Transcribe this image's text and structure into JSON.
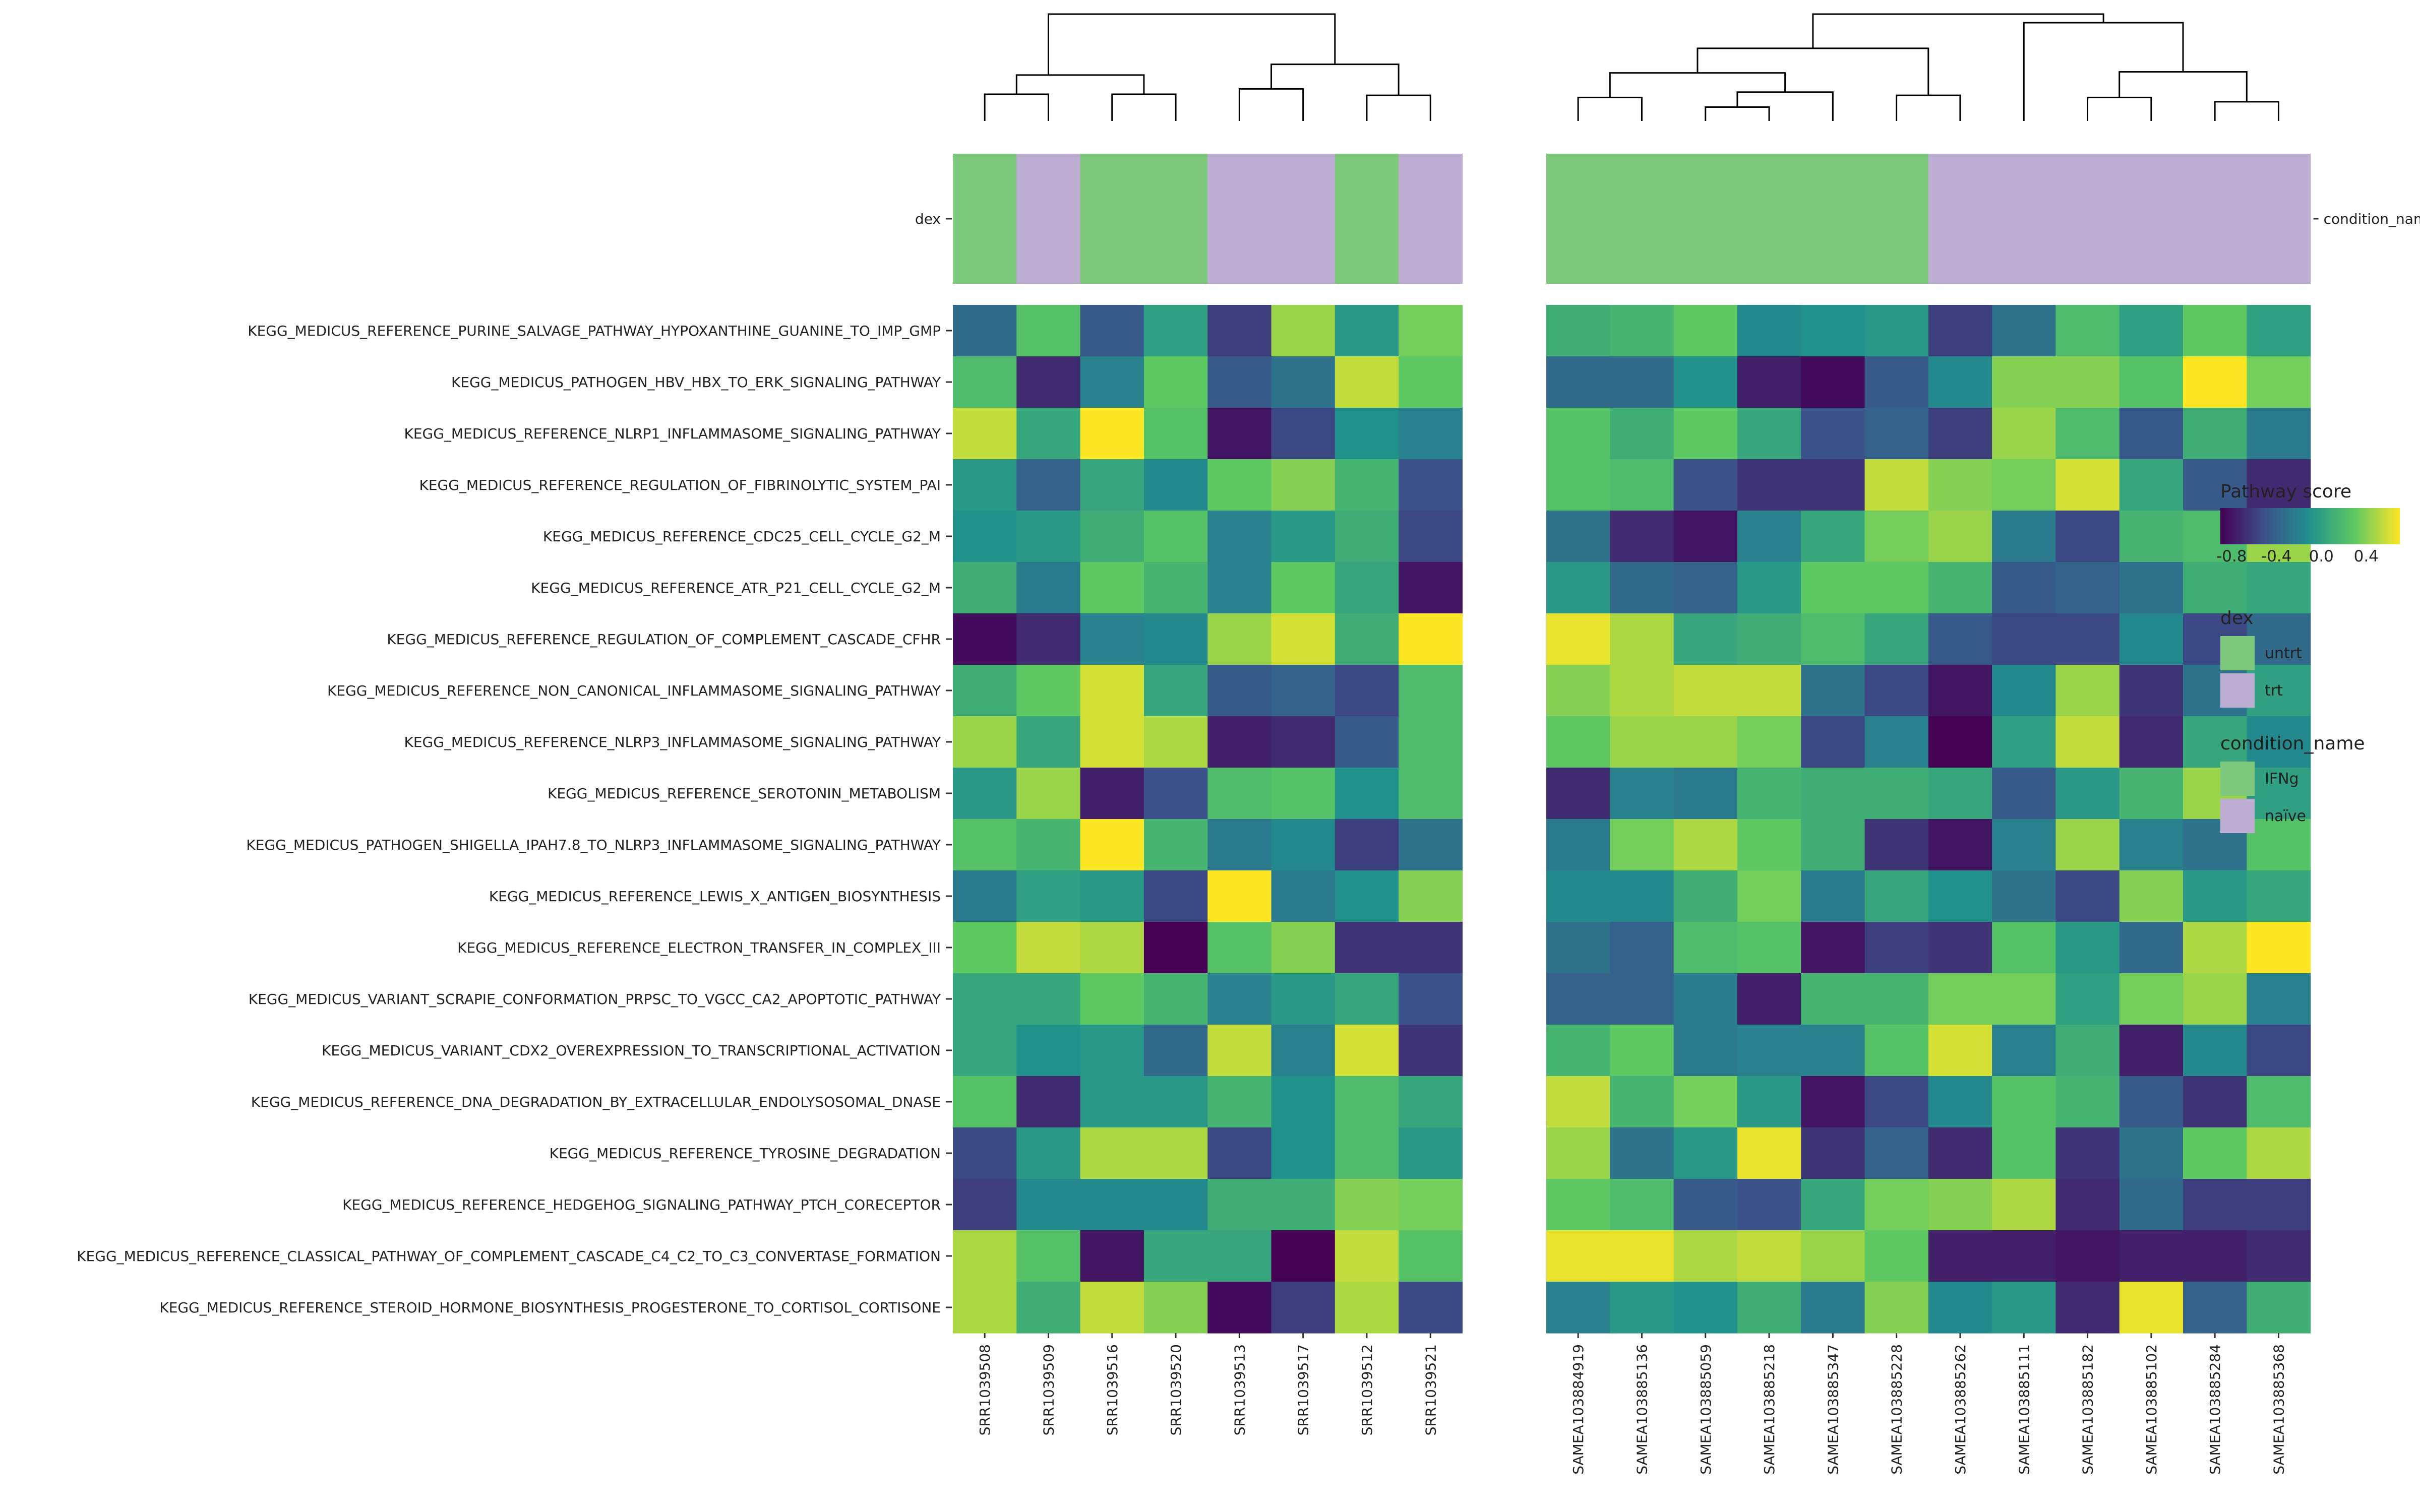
{
  "chart_data": {
    "type": "heatmap",
    "title": "",
    "annotation_labels": {
      "left": "dex",
      "right": "condition_name"
    },
    "colorscale": {
      "name": "viridis",
      "range": [
        -0.9,
        0.7
      ],
      "ticks": [
        -0.8,
        -0.4,
        0.0,
        0.4
      ],
      "tick_labels": [
        "-0.8",
        "-0.4",
        "0.0",
        "0.4"
      ],
      "title": "Pathway score"
    },
    "panels": [
      {
        "columns": [
          "SRR1039508",
          "SRR1039509",
          "SRR1039516",
          "SRR1039520",
          "SRR1039513",
          "SRR1039517",
          "SRR1039512",
          "SRR1039521"
        ],
        "annotation": [
          "untrt",
          "trt",
          "untrt",
          "untrt",
          "trt",
          "trt",
          "untrt",
          "trt"
        ],
        "annotation_legend": "dex",
        "values": [
          [
            -0.35,
            0.25,
            -0.45,
            0.0,
            -0.6,
            0.45,
            -0.05,
            0.35
          ],
          [
            0.2,
            -0.7,
            -0.2,
            0.3,
            -0.45,
            -0.3,
            0.55,
            0.3
          ],
          [
            0.55,
            0.05,
            0.7,
            0.25,
            -0.8,
            -0.55,
            -0.1,
            -0.2
          ],
          [
            -0.05,
            -0.4,
            0.05,
            -0.15,
            0.3,
            0.4,
            0.15,
            -0.5
          ],
          [
            -0.1,
            -0.05,
            0.1,
            0.25,
            -0.2,
            -0.05,
            0.1,
            -0.55
          ],
          [
            0.1,
            -0.25,
            0.3,
            0.15,
            -0.2,
            0.3,
            0.05,
            -0.8
          ],
          [
            -0.85,
            -0.7,
            -0.2,
            -0.15,
            0.45,
            0.6,
            0.1,
            0.7
          ],
          [
            0.1,
            0.3,
            0.6,
            0.05,
            -0.45,
            -0.4,
            -0.55,
            0.2
          ],
          [
            0.45,
            0.05,
            0.6,
            0.5,
            -0.75,
            -0.7,
            -0.45,
            0.2
          ],
          [
            -0.05,
            0.45,
            -0.75,
            -0.5,
            0.2,
            0.25,
            -0.1,
            0.2
          ],
          [
            0.25,
            0.15,
            0.7,
            0.15,
            -0.25,
            -0.15,
            -0.6,
            -0.3
          ],
          [
            -0.25,
            0.0,
            -0.05,
            -0.55,
            0.7,
            -0.25,
            -0.1,
            0.4
          ],
          [
            0.3,
            0.55,
            0.5,
            -0.9,
            0.25,
            0.4,
            -0.65,
            -0.65
          ],
          [
            0.05,
            0.05,
            0.3,
            0.15,
            -0.2,
            -0.05,
            0.05,
            -0.5
          ],
          [
            0.05,
            -0.1,
            -0.05,
            -0.35,
            0.55,
            -0.2,
            0.6,
            -0.65
          ],
          [
            0.25,
            -0.7,
            -0.05,
            -0.05,
            0.15,
            -0.1,
            0.2,
            0.05
          ],
          [
            -0.55,
            -0.05,
            0.5,
            0.5,
            -0.55,
            -0.1,
            0.2,
            -0.05
          ],
          [
            -0.6,
            -0.15,
            -0.15,
            -0.15,
            0.1,
            0.1,
            0.4,
            0.35
          ],
          [
            0.5,
            0.25,
            -0.8,
            0.05,
            0.05,
            -0.9,
            0.55,
            0.25
          ],
          [
            0.5,
            0.1,
            0.55,
            0.4,
            -0.85,
            -0.6,
            0.5,
            -0.55
          ]
        ]
      },
      {
        "columns": [
          "SAMEA103884919",
          "SAMEA103885136",
          "SAMEA103885059",
          "SAMEA103885218",
          "SAMEA103885347",
          "SAMEA103885228",
          "SAMEA103885262",
          "SAMEA103885111",
          "SAMEA103885182",
          "SAMEA103885102",
          "SAMEA103885284",
          "SAMEA103885368"
        ],
        "annotation": [
          "IFNg",
          "IFNg",
          "IFNg",
          "IFNg",
          "IFNg",
          "IFNg",
          "naive",
          "naive",
          "naive",
          "naive",
          "naive",
          "naive"
        ],
        "annotation_legend": "condition_name",
        "values": [
          [
            0.1,
            0.15,
            0.3,
            -0.15,
            -0.1,
            -0.05,
            -0.6,
            -0.3,
            0.2,
            0.0,
            0.3,
            0.0
          ],
          [
            -0.35,
            -0.35,
            -0.1,
            -0.75,
            -0.85,
            -0.45,
            -0.15,
            0.4,
            0.4,
            0.25,
            0.7,
            0.35
          ],
          [
            0.25,
            0.1,
            0.3,
            0.05,
            -0.5,
            -0.4,
            -0.6,
            0.45,
            0.2,
            -0.45,
            0.1,
            -0.25
          ],
          [
            0.25,
            0.2,
            -0.5,
            -0.65,
            -0.65,
            0.55,
            0.4,
            0.35,
            0.6,
            0.05,
            -0.45,
            -0.7
          ],
          [
            -0.3,
            -0.7,
            -0.8,
            -0.2,
            0.05,
            0.35,
            0.45,
            -0.25,
            -0.55,
            0.15,
            0.2,
            0.45
          ],
          [
            -0.05,
            -0.35,
            -0.4,
            -0.05,
            0.3,
            0.3,
            0.15,
            -0.45,
            -0.4,
            -0.3,
            0.1,
            0.05
          ],
          [
            0.65,
            0.5,
            0.05,
            0.1,
            0.2,
            0.05,
            -0.45,
            -0.55,
            -0.55,
            -0.15,
            -0.55,
            -0.35
          ],
          [
            0.4,
            0.5,
            0.55,
            0.55,
            -0.3,
            -0.55,
            -0.8,
            -0.15,
            0.45,
            -0.65,
            -0.3,
            0.0
          ],
          [
            0.3,
            0.45,
            0.45,
            0.35,
            -0.55,
            -0.2,
            -0.95,
            0.0,
            0.55,
            -0.7,
            0.05,
            -0.15
          ],
          [
            -0.7,
            -0.2,
            -0.25,
            0.15,
            0.1,
            0.1,
            0.05,
            -0.45,
            -0.05,
            0.15,
            0.45,
            0.0
          ],
          [
            -0.25,
            0.35,
            0.5,
            0.3,
            0.1,
            -0.65,
            -0.8,
            -0.2,
            0.45,
            -0.2,
            -0.3,
            0.25
          ],
          [
            -0.15,
            -0.15,
            0.1,
            0.35,
            -0.25,
            0.05,
            -0.1,
            -0.3,
            -0.55,
            0.4,
            -0.05,
            0.05
          ],
          [
            -0.3,
            -0.4,
            0.2,
            0.25,
            -0.8,
            -0.6,
            -0.65,
            0.25,
            -0.05,
            -0.35,
            0.5,
            0.7
          ],
          [
            -0.4,
            -0.4,
            -0.25,
            -0.75,
            0.15,
            0.15,
            0.35,
            0.35,
            0.0,
            0.35,
            0.45,
            -0.2
          ],
          [
            0.15,
            0.3,
            -0.25,
            -0.2,
            -0.2,
            0.25,
            0.6,
            -0.2,
            0.1,
            -0.75,
            -0.15,
            -0.55
          ],
          [
            0.55,
            0.15,
            0.35,
            -0.05,
            -0.8,
            -0.55,
            -0.15,
            0.25,
            0.15,
            -0.45,
            -0.65,
            0.2
          ],
          [
            0.45,
            -0.3,
            -0.05,
            0.65,
            -0.65,
            -0.4,
            -0.7,
            0.25,
            -0.65,
            -0.3,
            0.3,
            0.5
          ],
          [
            0.3,
            0.2,
            -0.45,
            -0.5,
            0.05,
            0.35,
            0.4,
            0.5,
            -0.7,
            -0.35,
            -0.6,
            -0.6
          ],
          [
            0.65,
            0.65,
            0.5,
            0.55,
            0.45,
            0.3,
            -0.75,
            -0.75,
            -0.8,
            -0.75,
            -0.75,
            -0.7
          ],
          [
            -0.2,
            -0.05,
            -0.1,
            0.1,
            -0.25,
            0.4,
            -0.15,
            -0.05,
            -0.7,
            0.65,
            -0.4,
            0.1
          ]
        ]
      }
    ],
    "rows": [
      "KEGG_MEDICUS_REFERENCE_PURINE_SALVAGE_PATHWAY_HYPOXANTHINE_GUANINE_TO_IMP_GMP",
      "KEGG_MEDICUS_PATHOGEN_HBV_HBX_TO_ERK_SIGNALING_PATHWAY",
      "KEGG_MEDICUS_REFERENCE_NLRP1_INFLAMMASOME_SIGNALING_PATHWAY",
      "KEGG_MEDICUS_REFERENCE_REGULATION_OF_FIBRINOLYTIC_SYSTEM_PAI",
      "KEGG_MEDICUS_REFERENCE_CDC25_CELL_CYCLE_G2_M",
      "KEGG_MEDICUS_REFERENCE_ATR_P21_CELL_CYCLE_G2_M",
      "KEGG_MEDICUS_REFERENCE_REGULATION_OF_COMPLEMENT_CASCADE_CFHR",
      "KEGG_MEDICUS_REFERENCE_NON_CANONICAL_INFLAMMASOME_SIGNALING_PATHWAY",
      "KEGG_MEDICUS_REFERENCE_NLRP3_INFLAMMASOME_SIGNALING_PATHWAY",
      "KEGG_MEDICUS_REFERENCE_SEROTONIN_METABOLISM",
      "KEGG_MEDICUS_PATHOGEN_SHIGELLA_IPAH7.8_TO_NLRP3_INFLAMMASOME_SIGNALING_PATHWAY",
      "KEGG_MEDICUS_REFERENCE_LEWIS_X_ANTIGEN_BIOSYNTHESIS",
      "KEGG_MEDICUS_REFERENCE_ELECTRON_TRANSFER_IN_COMPLEX_III",
      "KEGG_MEDICUS_VARIANT_SCRAPIE_CONFORMATION_PRPSC_TO_VGCC_CA2_APOPTOTIC_PATHWAY",
      "KEGG_MEDICUS_VARIANT_CDX2_OVEREXPRESSION_TO_TRANSCRIPTIONAL_ACTIVATION",
      "KEGG_MEDICUS_REFERENCE_DNA_DEGRADATION_BY_EXTRACELLULAR_ENDOLYSOSOMAL_DNASE",
      "KEGG_MEDICUS_REFERENCE_TYROSINE_DEGRADATION",
      "KEGG_MEDICUS_REFERENCE_HEDGEHOG_SIGNALING_PATHWAY_PTCH_CORECEPTOR",
      "KEGG_MEDICUS_REFERENCE_CLASSICAL_PATHWAY_OF_COMPLEMENT_CASCADE_C4_C2_TO_C3_CONVERTASE_FORMATION",
      "KEGG_MEDICUS_REFERENCE_STEROID_HORMONE_BIOSYNTHESIS_PROGESTERONE_TO_CORTISOL_CORTISONE"
    ]
  },
  "legends": {
    "colorbar_title": "Pathway score",
    "dex": {
      "title": "dex",
      "items": [
        {
          "label": "untrt",
          "color": "#7fc97f"
        },
        {
          "label": "trt",
          "color": "#beaed4"
        }
      ]
    },
    "condition_name": {
      "title": "condition_name",
      "items": [
        {
          "label": "IFNg",
          "color": "#7fc97f"
        },
        {
          "label": "naïve",
          "color": "#beaed4"
        }
      ]
    }
  },
  "colors": {
    "green": "#7fc97f",
    "purple": "#beaed4"
  }
}
